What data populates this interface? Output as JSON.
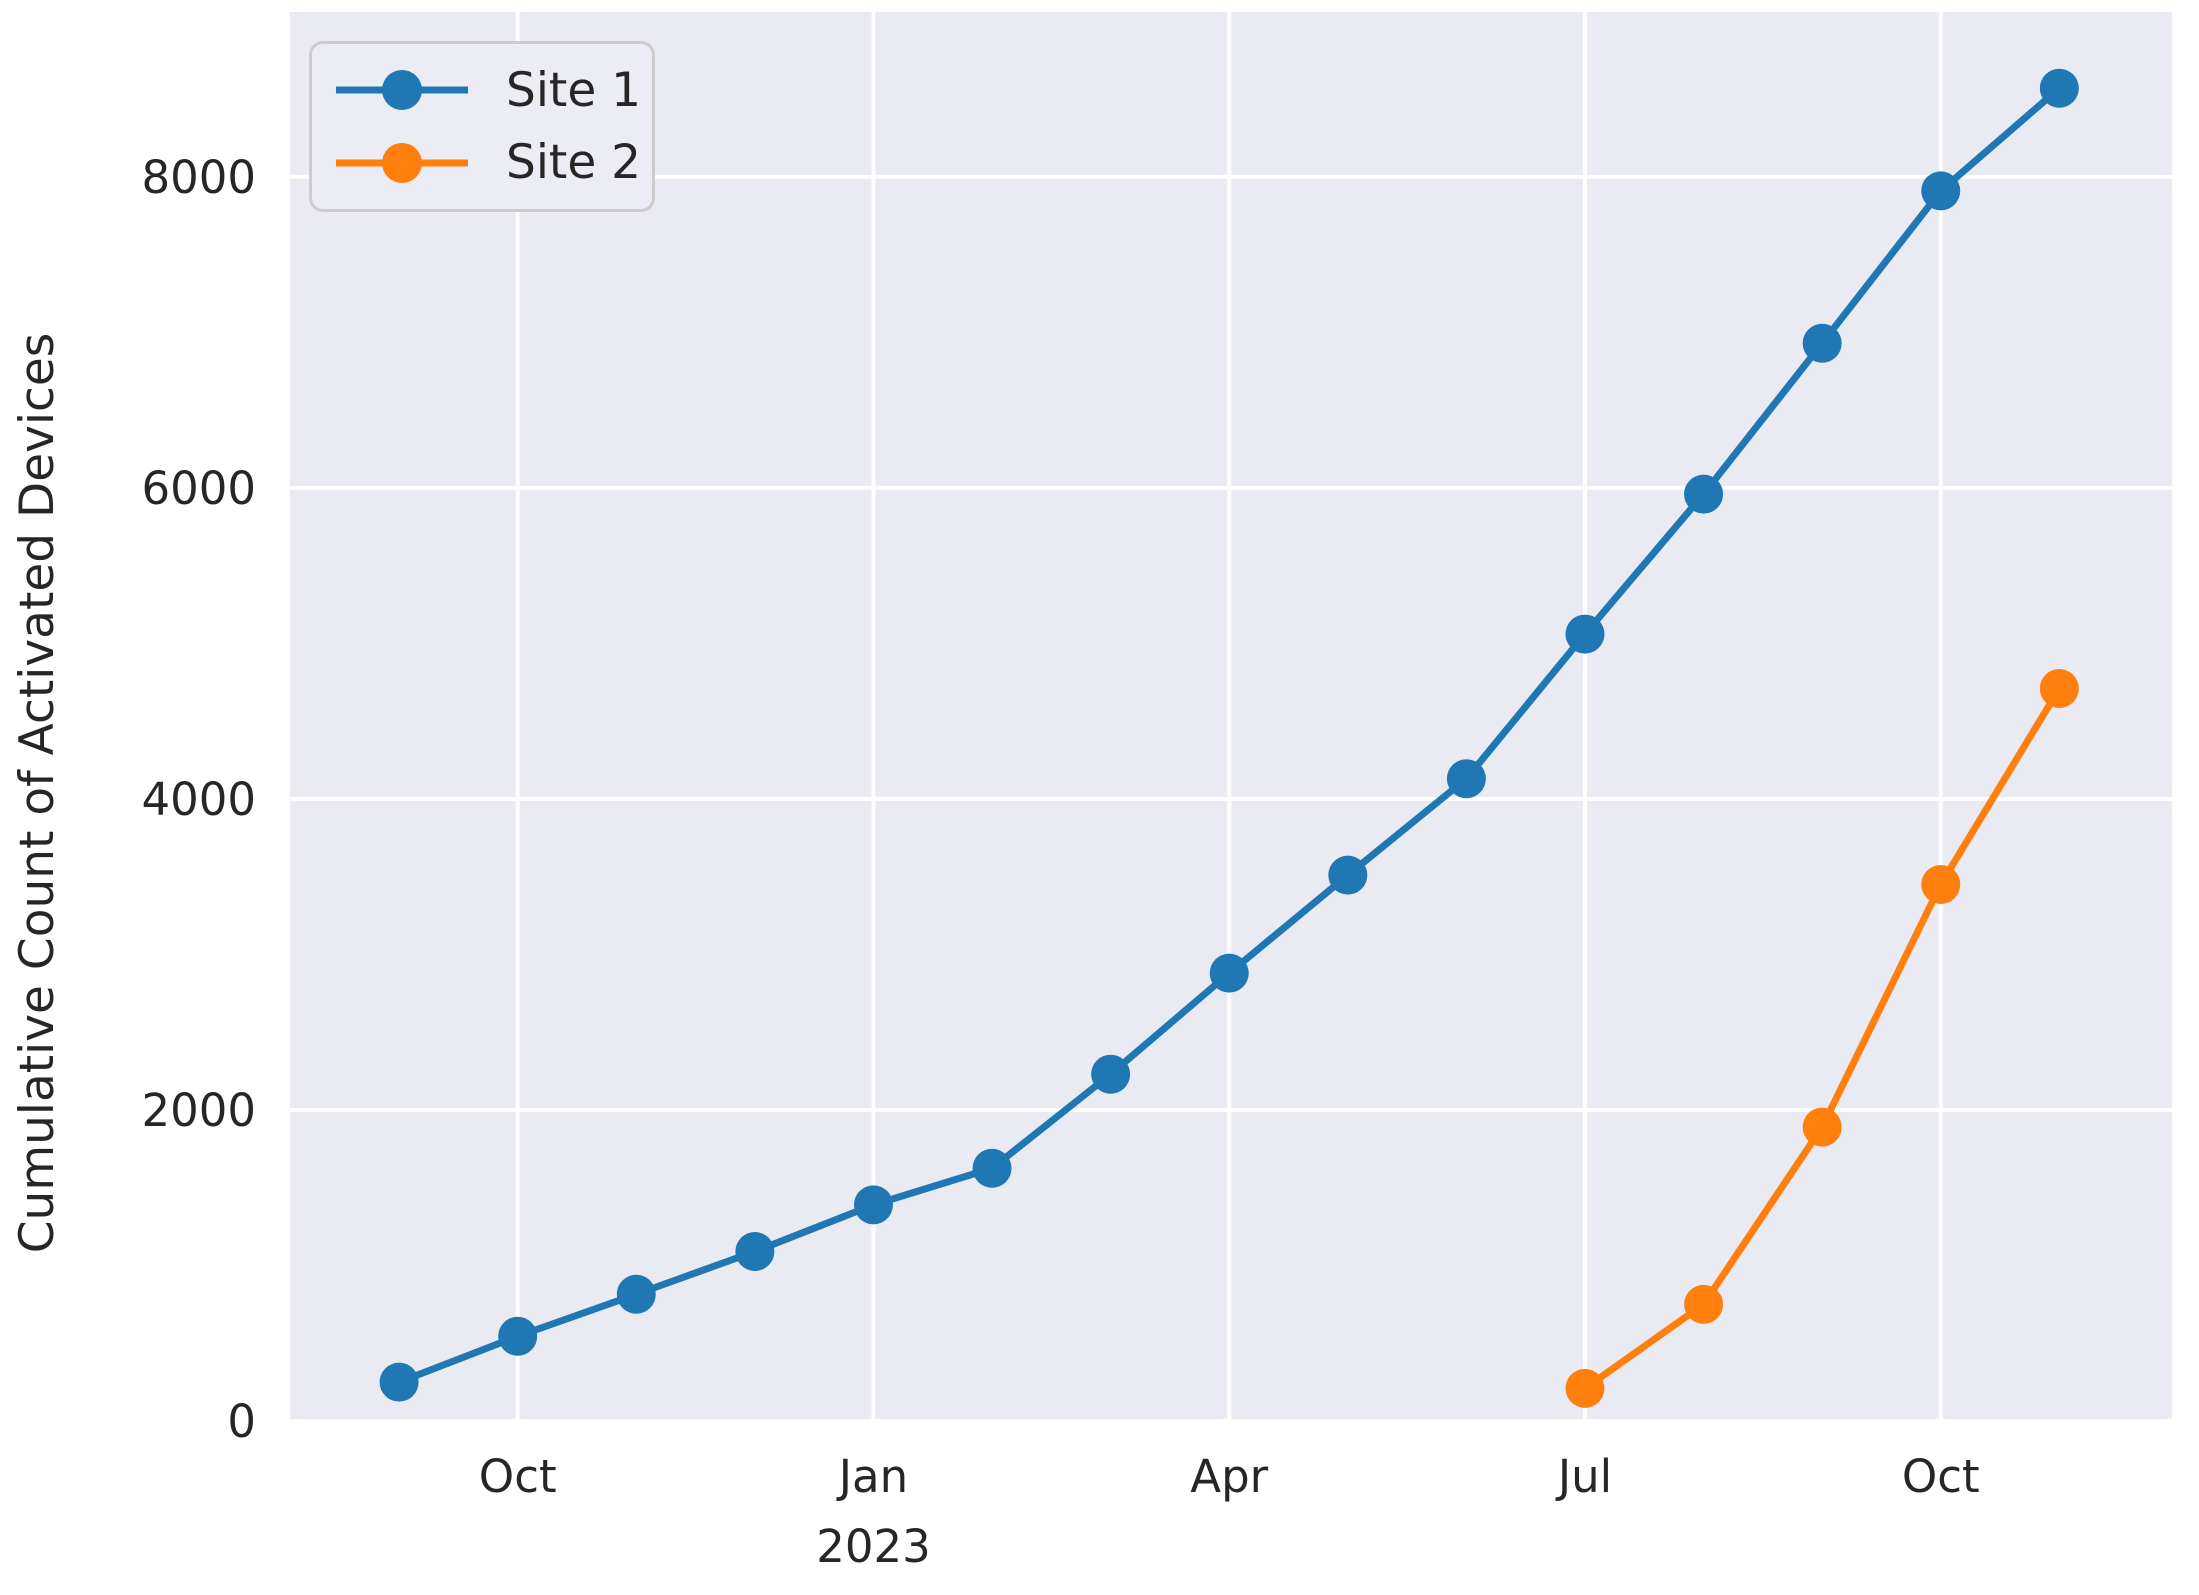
{
  "chart_data": {
    "type": "line",
    "title": "",
    "xlabel": "",
    "ylabel": "Cumulative Count of Activated Devices",
    "x_unit": "month",
    "categories": [
      "Sep 2022",
      "Oct 2022",
      "Nov 2022",
      "Dec 2022",
      "Jan 2023",
      "Feb 2023",
      "Mar 2023",
      "Apr 2023",
      "May 2023",
      "Jun 2023",
      "Jul 2023",
      "Aug 2023",
      "Sep 2023",
      "Oct 2023",
      "Nov 2023"
    ],
    "series": [
      {
        "name": "Site 1",
        "color": "#1f77b4",
        "marker": "circle",
        "start_index": 0,
        "values": [
          250,
          545,
          815,
          1090,
          1390,
          1625,
          2230,
          2880,
          3510,
          4130,
          5060,
          5960,
          6930,
          7910,
          8570
        ]
      },
      {
        "name": "Site 2",
        "color": "#ff7f0e",
        "marker": "circle",
        "start_index": 10,
        "values": [
          210,
          750,
          1890,
          3450,
          4710
        ]
      }
    ],
    "x_ticks": [
      {
        "index": 1,
        "label": "Oct"
      },
      {
        "index": 4,
        "label": "Jan",
        "sublabel": "2023"
      },
      {
        "index": 7,
        "label": "Apr"
      },
      {
        "index": 10,
        "label": "Jul"
      },
      {
        "index": 13,
        "label": "Oct"
      }
    ],
    "y_ticks": [
      {
        "value": 0,
        "label": "0"
      },
      {
        "value": 2000,
        "label": "2000"
      },
      {
        "value": 4000,
        "label": "4000"
      },
      {
        "value": 6000,
        "label": "6000"
      },
      {
        "value": 8000,
        "label": "8000"
      }
    ],
    "ylim": [
      0,
      9060
    ],
    "xlim_index": [
      -0.92,
      14.95
    ],
    "grid": true,
    "legend_position": "upper left",
    "style": "seaborn-darkgrid",
    "colors": {
      "plot_bg": "#eaeaf2",
      "grid": "#ffffff",
      "text": "#262626",
      "legend_bg": "#ececf4",
      "legend_border": "#cccccc",
      "page_bg": "#ffffff"
    }
  }
}
